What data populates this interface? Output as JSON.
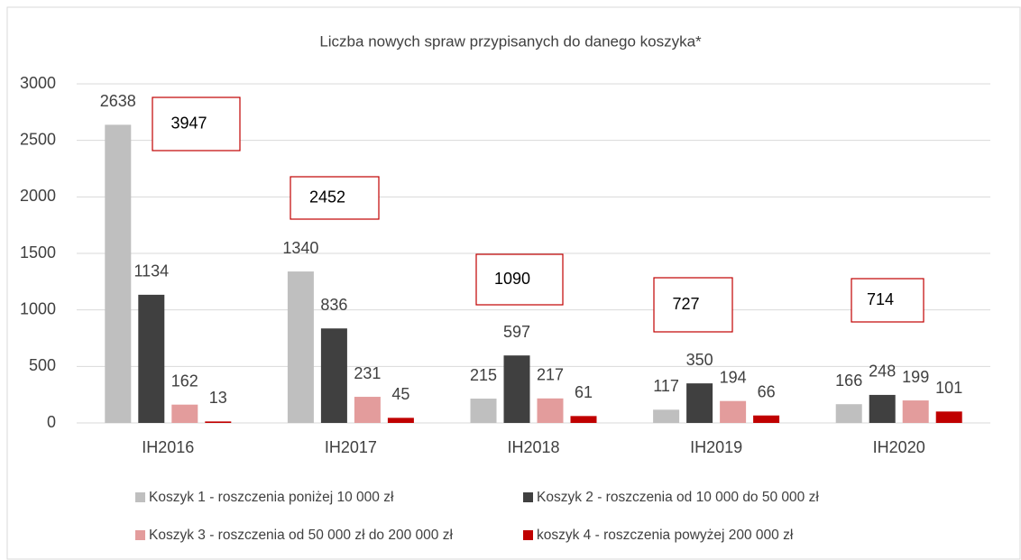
{
  "chart_data": {
    "type": "bar",
    "title": "Liczba nowych spraw przypisanych do danego koszyka*",
    "categories": [
      "IH2016",
      "IH2017",
      "IH2018",
      "IH2019",
      "IH2020"
    ],
    "series": [
      {
        "name": "Koszyk 1 - roszczenia poniżej 10 000 zł",
        "color": "#bfbfbf",
        "values": [
          2638,
          1340,
          215,
          117,
          166
        ]
      },
      {
        "name": "Koszyk 2 - roszczenia od 10 000 do 50 000 zł",
        "color": "#404040",
        "values": [
          1134,
          836,
          597,
          350,
          248
        ]
      },
      {
        "name": "Koszyk 3 - roszczenia od 50 000 zł do 200 000 zł",
        "color": "#e39c9c",
        "values": [
          162,
          231,
          217,
          194,
          199
        ]
      },
      {
        "name": "koszyk 4 - roszczenia powyżej 200 000 zł",
        "color": "#c00000",
        "values": [
          13,
          45,
          61,
          66,
          101
        ]
      }
    ],
    "totals": [
      3947,
      2452,
      1090,
      727,
      714
    ],
    "ylim": [
      0,
      3000
    ],
    "yticks": [
      0,
      500,
      1000,
      1500,
      2000,
      2500,
      3000
    ],
    "grid": true
  }
}
